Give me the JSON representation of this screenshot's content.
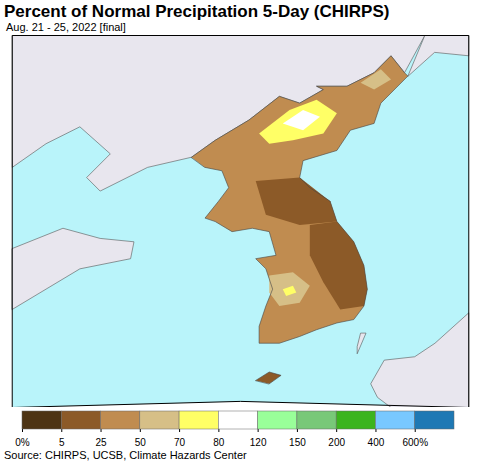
{
  "chart_data": {
    "type": "map",
    "title": "Percent of Normal Precipitation 5-Day (CHIRPS)",
    "subtitle": "Aug. 21 - 25, 2022 [final]",
    "caption": "Source: CHIRPS, UCSB, Climate Hazards Center",
    "xlim": [
      119,
      132.5
    ],
    "ylim": [
      32.5,
      43.5
    ],
    "tick_labels": false,
    "land": {
      "color": "#e8e6ee",
      "polygons": [
        [
          [
            119,
            43.5
          ],
          [
            131.2,
            43.5
          ],
          [
            130.6,
            42.4
          ],
          [
            130.2,
            42.9
          ],
          [
            129.7,
            42.4
          ],
          [
            128.9,
            42.0
          ],
          [
            128.0,
            42.0
          ],
          [
            128.2,
            41.9
          ],
          [
            127.5,
            41.5
          ],
          [
            126.9,
            41.7
          ],
          [
            126.0,
            41.0
          ],
          [
            125.0,
            40.4
          ],
          [
            124.3,
            39.9
          ],
          [
            123.0,
            39.6
          ],
          [
            121.6,
            38.9
          ],
          [
            121.2,
            39.3
          ],
          [
            121.9,
            40.0
          ],
          [
            121.0,
            40.8
          ],
          [
            120.0,
            40.3
          ],
          [
            119.0,
            39.6
          ],
          [
            119,
            43.5
          ]
        ],
        [
          [
            130.7,
            42.3
          ],
          [
            131.2,
            43.5
          ],
          [
            132.5,
            43.5
          ],
          [
            132.5,
            42.9
          ],
          [
            131.5,
            43.0
          ],
          [
            130.7,
            42.3
          ]
        ],
        [
          [
            119,
            37.2
          ],
          [
            120.5,
            37.8
          ],
          [
            121.6,
            37.5
          ],
          [
            122.6,
            37.4
          ],
          [
            122.5,
            36.9
          ],
          [
            121.0,
            36.6
          ],
          [
            120.0,
            36.0
          ],
          [
            119,
            35.4
          ],
          [
            119,
            37.2
          ]
        ],
        [
          [
            129.6,
            33.2
          ],
          [
            130.0,
            33.9
          ],
          [
            130.9,
            34.0
          ],
          [
            131.5,
            34.4
          ],
          [
            132.5,
            35.3
          ],
          [
            132.5,
            32.5
          ],
          [
            130.2,
            32.5
          ],
          [
            129.8,
            32.8
          ],
          [
            129.6,
            33.2
          ]
        ],
        [
          [
            129.2,
            34.1
          ],
          [
            129.45,
            34.7
          ],
          [
            129.3,
            34.7
          ],
          [
            129.2,
            34.3
          ],
          [
            129.2,
            34.1
          ]
        ]
      ]
    },
    "regions": [
      {
        "value": 30,
        "coordinates": [
          [
            124.3,
            39.9
          ],
          [
            125.0,
            40.4
          ],
          [
            126.0,
            41.0
          ],
          [
            126.9,
            41.7
          ],
          [
            127.5,
            41.5
          ],
          [
            128.2,
            41.9
          ],
          [
            128.0,
            42.0
          ],
          [
            128.9,
            42.0
          ],
          [
            129.7,
            42.4
          ],
          [
            130.2,
            42.9
          ],
          [
            130.6,
            42.4
          ],
          [
            130.7,
            42.3
          ],
          [
            129.9,
            41.5
          ],
          [
            129.7,
            40.9
          ],
          [
            129.0,
            40.7
          ],
          [
            128.6,
            40.1
          ],
          [
            127.6,
            39.8
          ],
          [
            127.5,
            39.3
          ],
          [
            127.8,
            39.0
          ],
          [
            128.4,
            38.6
          ],
          [
            128.6,
            38.0
          ],
          [
            129.1,
            37.4
          ],
          [
            129.4,
            36.7
          ],
          [
            129.5,
            36.0
          ],
          [
            129.4,
            35.5
          ],
          [
            129.1,
            35.1
          ],
          [
            128.6,
            35.0
          ],
          [
            128.0,
            34.8
          ],
          [
            127.5,
            34.6
          ],
          [
            126.9,
            34.4
          ],
          [
            126.3,
            34.4
          ],
          [
            126.3,
            34.9
          ],
          [
            126.5,
            35.5
          ],
          [
            126.7,
            36.0
          ],
          [
            126.5,
            36.6
          ],
          [
            126.2,
            36.9
          ],
          [
            126.8,
            37.0
          ],
          [
            126.6,
            37.7
          ],
          [
            126.1,
            37.8
          ],
          [
            125.5,
            37.7
          ],
          [
            125.0,
            38.0
          ],
          [
            124.7,
            38.1
          ],
          [
            125.1,
            38.6
          ],
          [
            125.4,
            39.0
          ],
          [
            125.2,
            39.5
          ],
          [
            124.7,
            39.6
          ],
          [
            124.3,
            39.9
          ]
        ]
      },
      {
        "value": 72,
        "coordinates": [
          [
            126.3,
            40.6
          ],
          [
            127.2,
            41.3
          ],
          [
            128.0,
            41.6
          ],
          [
            128.6,
            41.2
          ],
          [
            128.2,
            40.6
          ],
          [
            127.3,
            40.4
          ],
          [
            126.6,
            40.3
          ],
          [
            126.3,
            40.6
          ]
        ]
      },
      {
        "value": 100,
        "coordinates": [
          [
            127.0,
            40.9
          ],
          [
            127.6,
            41.3
          ],
          [
            128.1,
            41.1
          ],
          [
            127.6,
            40.7
          ],
          [
            127.0,
            40.9
          ]
        ]
      },
      {
        "value": 60,
        "coordinates": [
          [
            129.3,
            42.1
          ],
          [
            129.9,
            42.5
          ],
          [
            130.2,
            42.2
          ],
          [
            129.7,
            41.9
          ],
          [
            129.3,
            42.1
          ]
        ]
      },
      {
        "value": 15,
        "coordinates": [
          [
            126.2,
            39.2
          ],
          [
            127.5,
            39.3
          ],
          [
            128.4,
            38.6
          ],
          [
            128.6,
            38.0
          ],
          [
            127.5,
            37.9
          ],
          [
            126.5,
            38.2
          ],
          [
            126.2,
            39.2
          ]
        ]
      },
      {
        "value": 12,
        "coordinates": [
          [
            127.8,
            37.9
          ],
          [
            128.6,
            38.0
          ],
          [
            129.1,
            37.4
          ],
          [
            129.4,
            36.7
          ],
          [
            129.5,
            36.0
          ],
          [
            129.4,
            35.5
          ],
          [
            128.7,
            35.4
          ],
          [
            128.2,
            36.2
          ],
          [
            127.8,
            37.0
          ],
          [
            127.8,
            37.9
          ]
        ]
      },
      {
        "value": 55,
        "coordinates": [
          [
            126.6,
            36.4
          ],
          [
            127.3,
            36.5
          ],
          [
            127.8,
            36.1
          ],
          [
            127.5,
            35.6
          ],
          [
            126.9,
            35.5
          ],
          [
            126.6,
            35.9
          ],
          [
            126.6,
            36.4
          ]
        ]
      },
      {
        "value": 75,
        "coordinates": [
          [
            127.0,
            36.0
          ],
          [
            127.3,
            36.1
          ],
          [
            127.4,
            35.9
          ],
          [
            127.1,
            35.8
          ],
          [
            127.0,
            36.0
          ]
        ]
      },
      {
        "value": 10,
        "coordinates": [
          [
            126.2,
            33.3
          ],
          [
            126.6,
            33.55
          ],
          [
            126.95,
            33.45
          ],
          [
            126.6,
            33.2
          ],
          [
            126.2,
            33.3
          ]
        ]
      }
    ],
    "colorbar": {
      "thresholds": [
        0,
        5,
        25,
        50,
        70,
        80,
        120,
        150,
        200,
        400,
        600
      ],
      "ticks": [
        {
          "value": 0,
          "label": "0%"
        },
        5,
        25,
        50,
        70,
        80,
        120,
        150,
        200,
        400,
        {
          "value": 600,
          "label": "600%"
        }
      ],
      "colors": [
        "#4d3414",
        "#8c5a28",
        "#c08c50",
        "#d6bf87",
        "#ffff66",
        "#ffffff",
        "#99ff99",
        "#78c878",
        "#3cb41e",
        "#78c8ff",
        "#1e78b4"
      ]
    }
  }
}
